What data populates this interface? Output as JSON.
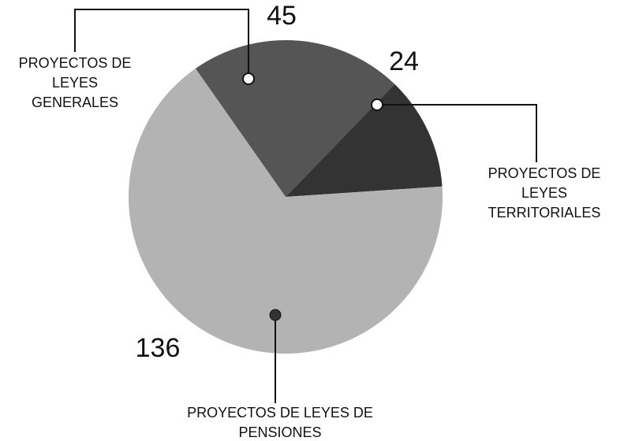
{
  "chart_data": {
    "type": "pie",
    "categories": [
      "PROYECTOS DE LEYES GENERALES",
      "PROYECTOS DE LEYES TERRITORIALES",
      "PROYECTOS DE LEYES DE PENSIONES"
    ],
    "values": [
      45,
      24,
      136
    ],
    "colors": [
      "#555555",
      "#333333",
      "#b3b3b3"
    ]
  }
}
